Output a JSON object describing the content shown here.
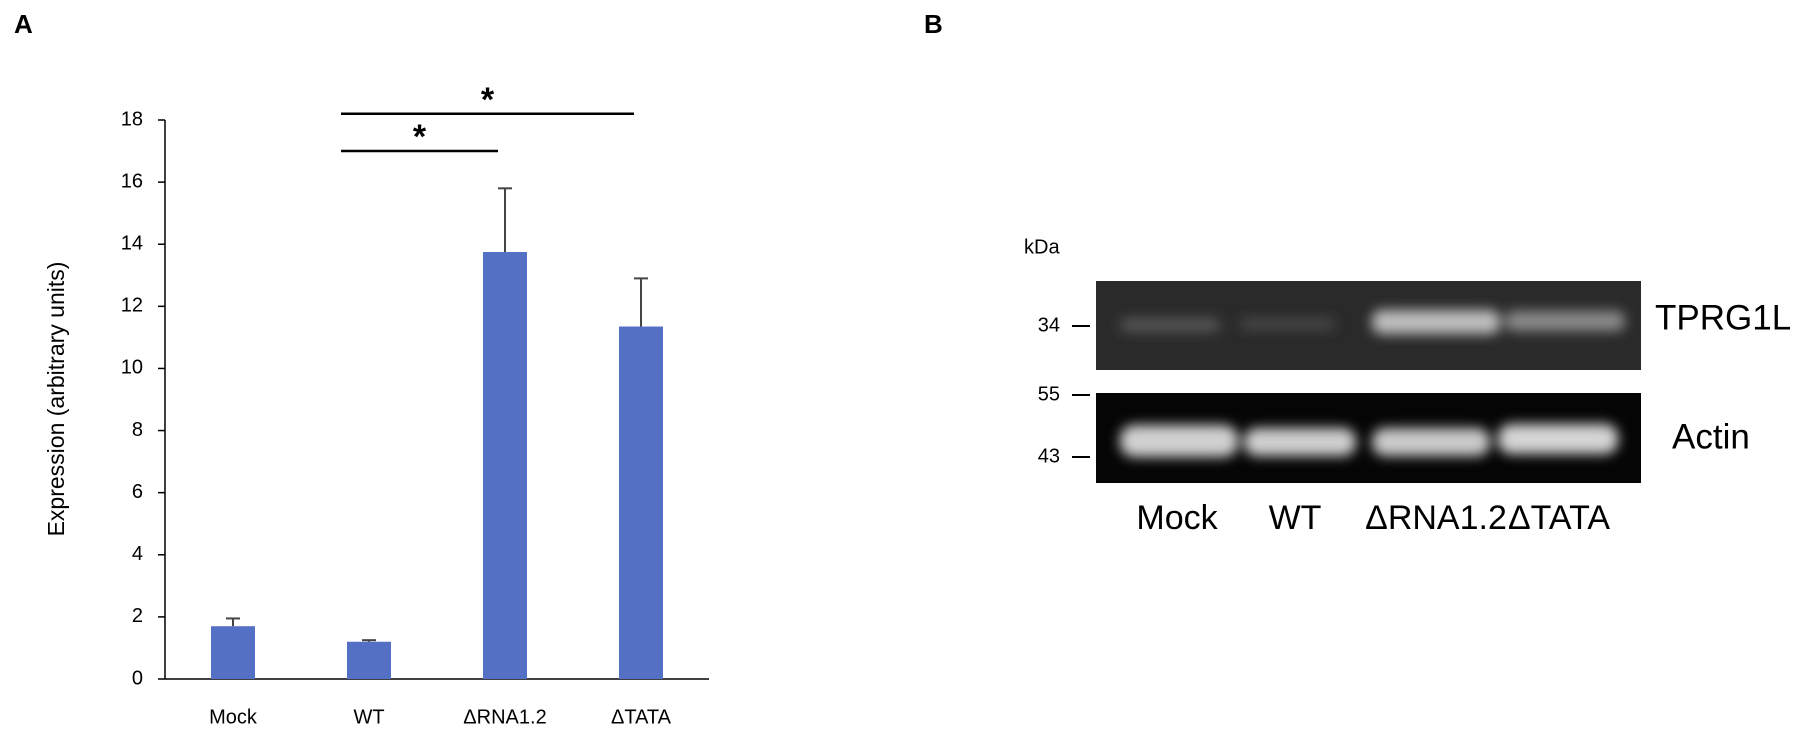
{
  "chart_data": {
    "type": "bar",
    "panel_label": "A",
    "y_label": "Expression (arbitrary units)",
    "categories": [
      "Mock",
      "WT",
      "ΔRNA1.2",
      "ΔTATA"
    ],
    "series": [
      {
        "color": "#5470c4",
        "values": [
          1.7,
          1.2,
          13.75,
          11.35
        ],
        "errors": [
          0.25,
          0.05,
          2.05,
          1.55
        ]
      }
    ],
    "ylim": [
      0,
      18
    ],
    "yticks": [
      0,
      2,
      4,
      6,
      8,
      10,
      12,
      14,
      16,
      18
    ],
    "grid": false,
    "annotations": [
      {
        "text": "*",
        "categories": [
          "WT",
          "ΔRNA1.2"
        ],
        "y": 17.0
      },
      {
        "text": "*",
        "categories": [
          "WT",
          "ΔTATA"
        ],
        "y": 18.2
      }
    ]
  },
  "blot": {
    "panel_label": "B",
    "unit": "kDa",
    "markers": [
      "34",
      "55",
      "43"
    ],
    "bands": [
      "TPRG1L",
      "Actin"
    ],
    "lanes": [
      "Mock",
      "WT",
      "ΔRNA1.2",
      "ΔTATA"
    ]
  }
}
